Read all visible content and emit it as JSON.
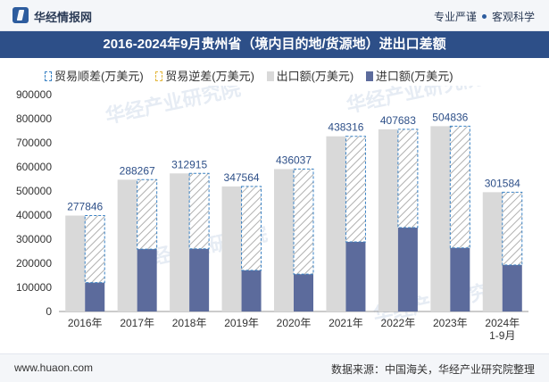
{
  "header": {
    "brand": "华经情报网",
    "slogan_left": "专业严谨",
    "slogan_right": "客观科学"
  },
  "chart_title": "2016-2024年9月贵州省（境内目的地/货源地）进出口差额",
  "legend": {
    "surplus": "贸易顺差(万美元)",
    "deficit": "贸易逆差(万美元)",
    "export": "出口额(万美元)",
    "import": "进口额(万美元)"
  },
  "watermark": "华经产业研究院",
  "watermark_url": "www.huaon.com",
  "footer": {
    "website": "www.huaon.com",
    "source": "数据来源：中国海关，华经产业研究院整理"
  },
  "colors": {
    "export": "#d9d9d9",
    "import": "#5c6b9c",
    "surplus_border": "#3a82c4",
    "hatch": "#b0b0b0",
    "label": "#2d4f88"
  },
  "chart_data": {
    "type": "bar",
    "categories": [
      "2016年",
      "2017年",
      "2018年",
      "2019年",
      "2020年",
      "2021年",
      "2022年",
      "2023年",
      "2024年\n1-9月"
    ],
    "series": [
      {
        "name": "出口额(万美元)",
        "values": [
          398000,
          547000,
          573000,
          519000,
          591000,
          727000,
          756000,
          769000,
          495000
        ]
      },
      {
        "name": "进口额(万美元)",
        "values": [
          120000,
          259000,
          260000,
          171000,
          155000,
          289000,
          348000,
          264000,
          193000
        ]
      },
      {
        "name": "贸易顺差(万美元)",
        "values": [
          277846,
          288267,
          312915,
          347564,
          436037,
          438316,
          407683,
          504836,
          301584
        ]
      },
      {
        "name": "贸易逆差(万美元)",
        "values": [
          0,
          0,
          0,
          0,
          0,
          0,
          0,
          0,
          0
        ]
      }
    ],
    "ylim": [
      0,
      900000
    ],
    "yticks": [
      0,
      100000,
      200000,
      300000,
      400000,
      500000,
      600000,
      700000,
      800000,
      900000
    ],
    "xlabel": "",
    "ylabel": "",
    "legend_position": "top"
  }
}
